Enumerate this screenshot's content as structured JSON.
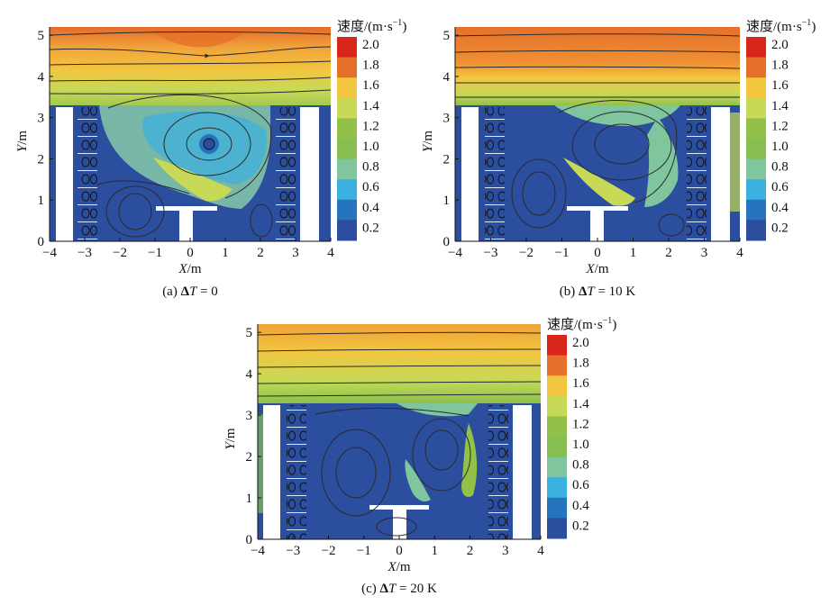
{
  "figure": {
    "legend_title": "速度/(m·s",
    "legend_title_sup": "−1",
    "legend_title_close": ")",
    "legend_ticks": [
      "2.0",
      "1.8",
      "1.6",
      "1.4",
      "1.2",
      "1.0",
      "0.8",
      "0.6",
      "0.4",
      "0.2"
    ],
    "legend_colors": [
      "#d9261c",
      "#e5702a",
      "#f3c63f",
      "#c7d957",
      "#92c14a",
      "#86be52",
      "#7fc59d",
      "#3bb1e0",
      "#2673be",
      "#2b4e9e"
    ],
    "x_ticks": [
      "−4",
      "−3",
      "−2",
      "−1",
      "0",
      "1",
      "2",
      "3",
      "4"
    ],
    "y_ticks": [
      "0",
      "1",
      "2",
      "3",
      "4",
      "5"
    ],
    "x_label_var": "X",
    "x_label_unit": "/m",
    "y_label_var": "Y",
    "y_label_unit": "/m",
    "panels": [
      {
        "caption_prefix": "(a) ",
        "caption_symbol": "Δ",
        "caption_var": "T",
        "caption_value": " = 0"
      },
      {
        "caption_prefix": "(b) ",
        "caption_symbol": "Δ",
        "caption_var": "T",
        "caption_value": " = 10 K"
      },
      {
        "caption_prefix": "(c) ",
        "caption_symbol": "Δ",
        "caption_var": "T",
        "caption_value": " = 20 K"
      }
    ]
  }
}
